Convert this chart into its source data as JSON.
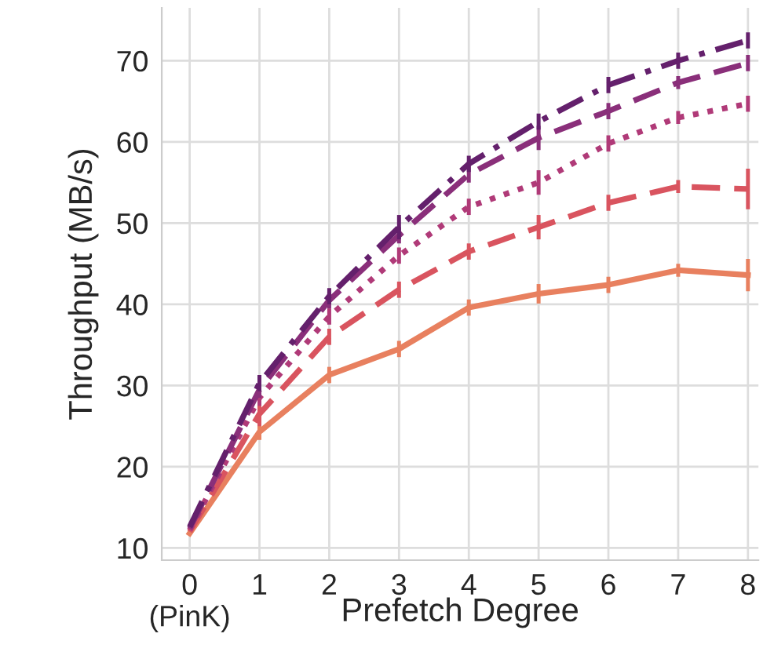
{
  "chart_data": {
    "type": "line",
    "xlabel": "Prefetch Degree",
    "ylabel": "Throughput (MB/s)",
    "x": [
      0,
      1,
      2,
      3,
      4,
      5,
      6,
      7,
      8
    ],
    "xlim": [
      -0.4,
      8.15
    ],
    "xticks": [
      {
        "value": 0,
        "label": "0\n(PinK)"
      },
      1,
      2,
      3,
      4,
      5,
      6,
      7,
      8
    ],
    "ylim": [
      8.5,
      76.5
    ],
    "yticks": [
      10,
      20,
      30,
      40,
      50,
      60,
      70
    ],
    "grid": true,
    "marker": "none",
    "series": [
      {
        "color": "#e8805f",
        "line_style": "solid",
        "values": [
          11.8,
          24.3,
          31.3,
          34.5,
          39.6,
          41.3,
          42.4,
          44.2,
          43.6
        ],
        "errors": [
          null,
          1,
          1,
          1,
          1,
          1.2,
          1,
          0.8,
          2
        ]
      },
      {
        "color": "#d9545f",
        "line_style": "dashed",
        "values": [
          12,
          26.5,
          36,
          41.8,
          46.5,
          49.5,
          52.5,
          54.5,
          54.2
        ],
        "errors": [
          null,
          1.5,
          1,
          1,
          1,
          1.5,
          1,
          0.8,
          2.5
        ]
      },
      {
        "color": "#b03a78",
        "line_style": "dotted",
        "values": [
          12.2,
          28.5,
          38.5,
          46,
          52,
          55,
          59.8,
          63,
          64.7
        ],
        "errors": [
          null,
          1,
          1,
          1,
          1,
          1.5,
          1,
          0.8,
          1
        ]
      },
      {
        "color": "#8a2f7a",
        "line_style": "dashed",
        "values": [
          12.4,
          29.5,
          40.5,
          48.5,
          56,
          60.5,
          63.8,
          67.3,
          69.7
        ],
        "errors": [
          null,
          1,
          1,
          1,
          1,
          1.5,
          1,
          0.8,
          1
        ]
      },
      {
        "color": "#64206c",
        "line_style": "dashdot",
        "values": [
          12.6,
          30.3,
          41,
          49.5,
          57.3,
          62.5,
          67,
          70,
          72.5
        ],
        "errors": [
          null,
          1,
          1,
          1.5,
          1,
          1,
          1,
          1,
          1
        ]
      }
    ]
  }
}
